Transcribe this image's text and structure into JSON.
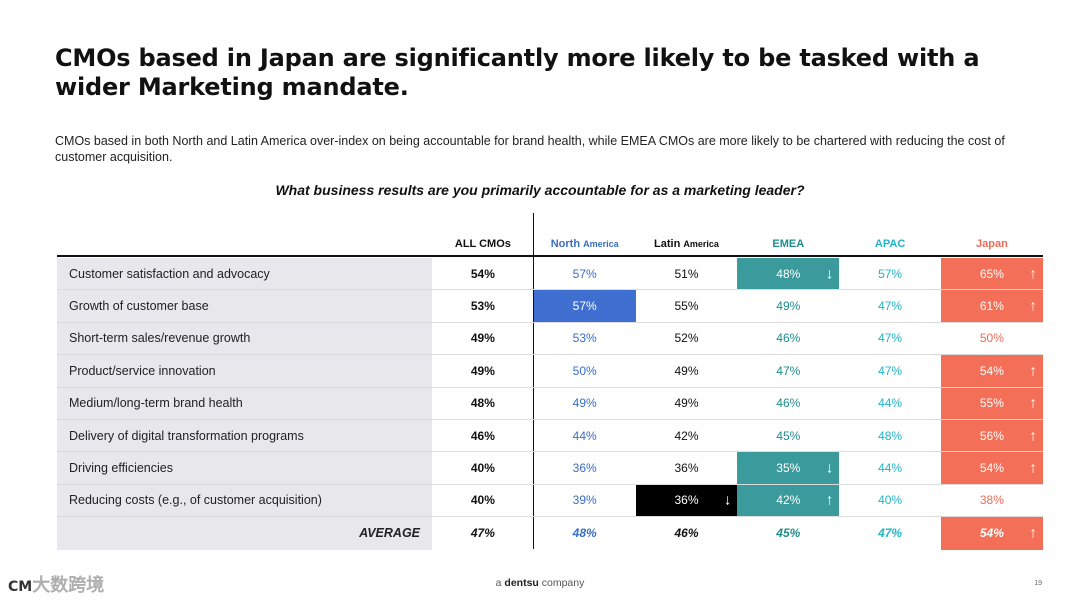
{
  "title": "CMOs based in Japan are significantly more likely to be tasked with a wider Marketing mandate.",
  "subtitle": "CMOs based in both North and Latin America over-index on being accountable for brand health, while EMEA CMOs are more likely to be chartered with reducing the cost of customer acquisition.",
  "question": "What business results are you primarily accountable for as a marketing leader?",
  "columns": [
    {
      "main": "ALL CMOs",
      "small": "",
      "color": "#111111"
    },
    {
      "main": "North ",
      "small": "America",
      "color": "#3a6ec2"
    },
    {
      "main": "Latin ",
      "small": "America",
      "color": "#111111"
    },
    {
      "main": "EMEA",
      "small": "",
      "color": "#1e8c8c"
    },
    {
      "main": "APAC",
      "small": "",
      "color": "#22b5c4"
    },
    {
      "main": "Japan",
      "small": "",
      "color": "#ef6b55"
    }
  ],
  "colors": {
    "north_america": "#3a6ec2",
    "latin_america": "#111111",
    "emea": "#1e8c8c",
    "apac": "#22b5c4",
    "japan": "#ef6b55",
    "emea_highlight": "#3a9a9c",
    "japan_highlight": "#f36f58",
    "north_america_highlight": "#3f6fd1",
    "latin_america_highlight": "#000000",
    "label_bg": "#e8e8ec"
  },
  "icons": {
    "up": "up-arrow-icon",
    "down": "down-arrow-icon"
  },
  "chart_data": {
    "type": "table",
    "title": "What business results are you primarily accountable for as a marketing leader?",
    "columns": [
      "ALL CMOs",
      "North America",
      "Latin America",
      "EMEA",
      "APAC",
      "Japan"
    ],
    "rows": [
      {
        "label": "Customer satisfaction and advocacy",
        "values": [
          "54%",
          "57%",
          "51%",
          "48%",
          "57%",
          "65%"
        ],
        "highlight": [
          null,
          null,
          null,
          "down",
          null,
          "up"
        ]
      },
      {
        "label": "Growth of customer base",
        "values": [
          "53%",
          "57%",
          "55%",
          "49%",
          "47%",
          "61%"
        ],
        "highlight": [
          null,
          "plain",
          null,
          null,
          null,
          "up"
        ]
      },
      {
        "label": "Short-term sales/revenue growth",
        "values": [
          "49%",
          "53%",
          "52%",
          "46%",
          "47%",
          "50%"
        ],
        "highlight": [
          null,
          null,
          null,
          null,
          null,
          null
        ]
      },
      {
        "label": "Product/service innovation",
        "values": [
          "49%",
          "50%",
          "49%",
          "47%",
          "47%",
          "54%"
        ],
        "highlight": [
          null,
          null,
          null,
          null,
          null,
          "up"
        ]
      },
      {
        "label": "Medium/long-term brand health",
        "values": [
          "48%",
          "49%",
          "49%",
          "46%",
          "44%",
          "55%"
        ],
        "highlight": [
          null,
          null,
          null,
          null,
          null,
          "up"
        ]
      },
      {
        "label": "Delivery of digital transformation programs",
        "values": [
          "46%",
          "44%",
          "42%",
          "45%",
          "48%",
          "56%"
        ],
        "highlight": [
          null,
          null,
          null,
          null,
          null,
          "up"
        ]
      },
      {
        "label": "Driving efficiencies",
        "values": [
          "40%",
          "36%",
          "36%",
          "35%",
          "44%",
          "54%"
        ],
        "highlight": [
          null,
          null,
          null,
          "down",
          null,
          "up"
        ]
      },
      {
        "label": "Reducing costs (e.g., of customer acquisition)",
        "values": [
          "40%",
          "39%",
          "36%",
          "42%",
          "40%",
          "38%"
        ],
        "highlight": [
          null,
          null,
          "down",
          "up",
          null,
          null
        ]
      }
    ],
    "average": {
      "label": "AVERAGE",
      "values": [
        "47%",
        "48%",
        "46%",
        "45%",
        "47%",
        "54%"
      ],
      "highlight": [
        null,
        null,
        null,
        null,
        null,
        "up"
      ]
    }
  },
  "footer": {
    "prefix": "a ",
    "brand": "dentsu",
    "suffix": " company"
  },
  "page_number": "19",
  "watermark": {
    "logo": "CM",
    "text": "大数跨境"
  }
}
